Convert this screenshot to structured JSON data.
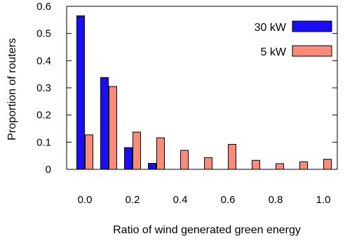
{
  "chart_data": {
    "type": "bar",
    "xlabel": "Ratio of wind generated green energy",
    "ylabel": "Proportion of routers",
    "ylim": [
      0,
      0.6
    ],
    "yticks": [
      "0",
      "0.1",
      "0.2",
      "0.3",
      "0.4",
      "0.5",
      "0.6"
    ],
    "xticks": [
      "0.0",
      "0.2",
      "0.4",
      "0.6",
      "0.8",
      "1.0"
    ],
    "x": [
      0.0,
      0.1,
      0.2,
      0.3,
      0.4,
      0.5,
      0.6,
      0.7,
      0.8,
      0.9,
      1.0
    ],
    "legend_position": "top-right",
    "grid": false,
    "series": [
      {
        "name": "30 kW",
        "color": "#1a0dff",
        "values": [
          0.565,
          0.338,
          0.08,
          0.022,
          0,
          0,
          0,
          0,
          0,
          0,
          0
        ]
      },
      {
        "name": "5 kW",
        "color": "#f98b78",
        "values": [
          0.127,
          0.305,
          0.137,
          0.116,
          0.07,
          0.043,
          0.092,
          0.033,
          0.021,
          0.028,
          0.037
        ]
      }
    ]
  }
}
